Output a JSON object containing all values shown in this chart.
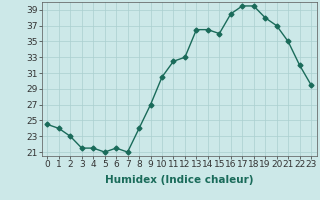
{
  "x": [
    0,
    1,
    2,
    3,
    4,
    5,
    6,
    7,
    8,
    9,
    10,
    11,
    12,
    13,
    14,
    15,
    16,
    17,
    18,
    19,
    20,
    21,
    22,
    23
  ],
  "y": [
    24.5,
    24.0,
    23.0,
    21.5,
    21.5,
    21.0,
    21.5,
    21.0,
    24.0,
    27.0,
    30.5,
    32.5,
    33.0,
    36.5,
    36.5,
    36.0,
    38.5,
    39.5,
    39.5,
    38.0,
    37.0,
    35.0,
    32.0,
    29.5
  ],
  "line_color": "#1a6b5a",
  "marker": "D",
  "marker_size": 2.5,
  "bg_color": "#cce8e8",
  "grid_color": "#aacfcf",
  "xlabel": "Humidex (Indice chaleur)",
  "xlim": [
    -0.5,
    23.5
  ],
  "ylim": [
    20.5,
    40.0
  ],
  "yticks": [
    21,
    23,
    25,
    27,
    29,
    31,
    33,
    35,
    37,
    39
  ],
  "xtick_labels": [
    "0",
    "1",
    "2",
    "3",
    "4",
    "5",
    "6",
    "7",
    "8",
    "9",
    "10",
    "11",
    "12",
    "13",
    "14",
    "15",
    "16",
    "17",
    "18",
    "19",
    "20",
    "21",
    "22",
    "23"
  ],
  "tick_fontsize": 6.5,
  "xlabel_fontsize": 7.5
}
